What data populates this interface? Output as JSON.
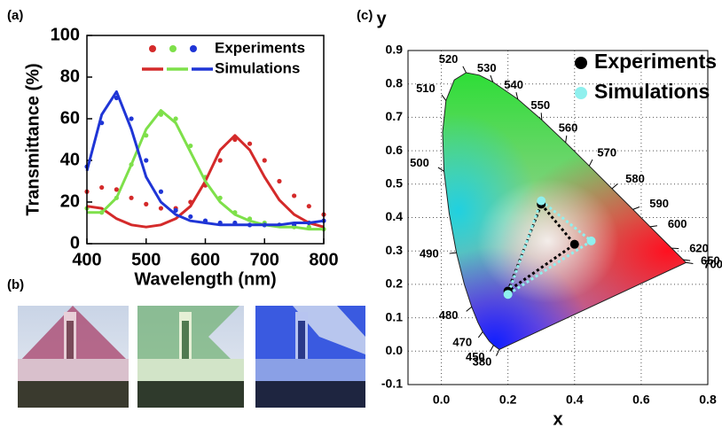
{
  "chart_data": [
    {
      "type": "line",
      "label": "(a)",
      "xlabel": "Wavelength (nm)",
      "ylabel": "Transmittance (%)",
      "x": [
        400,
        425,
        450,
        475,
        500,
        525,
        550,
        575,
        600,
        625,
        650,
        675,
        700,
        725,
        750,
        775,
        800
      ],
      "series": [
        {
          "name": "Experiments",
          "style": "dots",
          "color": "#d42a2a",
          "values": [
            25,
            27,
            26,
            22,
            19,
            17,
            17,
            20,
            28,
            40,
            50,
            48,
            40,
            30,
            23,
            18,
            14
          ]
        },
        {
          "name": "Experiments",
          "style": "dots",
          "color": "#7ee04a",
          "values": [
            17,
            15,
            22,
            38,
            52,
            62,
            60,
            47,
            32,
            22,
            15,
            12,
            10,
            9,
            8,
            8,
            7
          ]
        },
        {
          "name": "Experiments",
          "style": "dots",
          "color": "#1f35d6",
          "values": [
            37,
            58,
            70,
            60,
            40,
            25,
            16,
            13,
            11,
            10,
            10,
            9,
            9,
            9,
            9,
            10,
            11
          ]
        },
        {
          "name": "Simulations",
          "style": "line",
          "color": "#d42a2a",
          "values": [
            18,
            17,
            12,
            9,
            8,
            9,
            12,
            18,
            30,
            45,
            52,
            45,
            32,
            21,
            14,
            10,
            8
          ]
        },
        {
          "name": "Simulations",
          "style": "line",
          "color": "#7ee04a",
          "values": [
            15,
            15,
            22,
            38,
            55,
            64,
            58,
            44,
            30,
            20,
            14,
            11,
            9,
            8,
            8,
            7,
            7
          ]
        },
        {
          "name": "Simulations",
          "style": "line",
          "color": "#1f35d6",
          "values": [
            35,
            62,
            73,
            55,
            32,
            20,
            14,
            11,
            10,
            9,
            9,
            9,
            9,
            9,
            10,
            10,
            11
          ]
        }
      ],
      "xlim": [
        400,
        800
      ],
      "xticks": [
        400,
        500,
        600,
        700,
        800
      ],
      "ylim": [
        0,
        100
      ],
      "yticks": [
        0,
        20,
        40,
        60,
        80,
        100
      ]
    },
    {
      "type": "scatter",
      "label": "(c)",
      "xlabel": "x",
      "ylabel": "y",
      "legend": "top-right",
      "grid": true,
      "wavelength_labels": [
        "380",
        "450",
        "470",
        "480",
        "490",
        "500",
        "510",
        "520",
        "530",
        "540",
        "550",
        "560",
        "570",
        "580",
        "590",
        "600",
        "620",
        "650",
        "700"
      ],
      "series": [
        {
          "name": "Experiments",
          "color": "#000000",
          "x": [
            0.3,
            0.4,
            0.2
          ],
          "y": [
            0.44,
            0.32,
            0.18
          ]
        },
        {
          "name": "Simulations",
          "color": "#8ff0ee",
          "x": [
            0.3,
            0.45,
            0.2
          ],
          "y": [
            0.45,
            0.33,
            0.17
          ]
        }
      ],
      "xlim": [
        -0.1,
        0.8
      ],
      "xticks": [
        {
          "value": 0,
          "label": "0.0"
        },
        0.2,
        0.4,
        0.6,
        0.8
      ],
      "ylim": [
        -0.1,
        0.9
      ],
      "yticks": [
        -0.1,
        {
          "value": 0,
          "label": "0.0"
        },
        0.1,
        0.2,
        0.3,
        0.4,
        0.5,
        0.6,
        0.7,
        0.8,
        0.9
      ]
    }
  ],
  "photos": {
    "label": "(b)"
  }
}
